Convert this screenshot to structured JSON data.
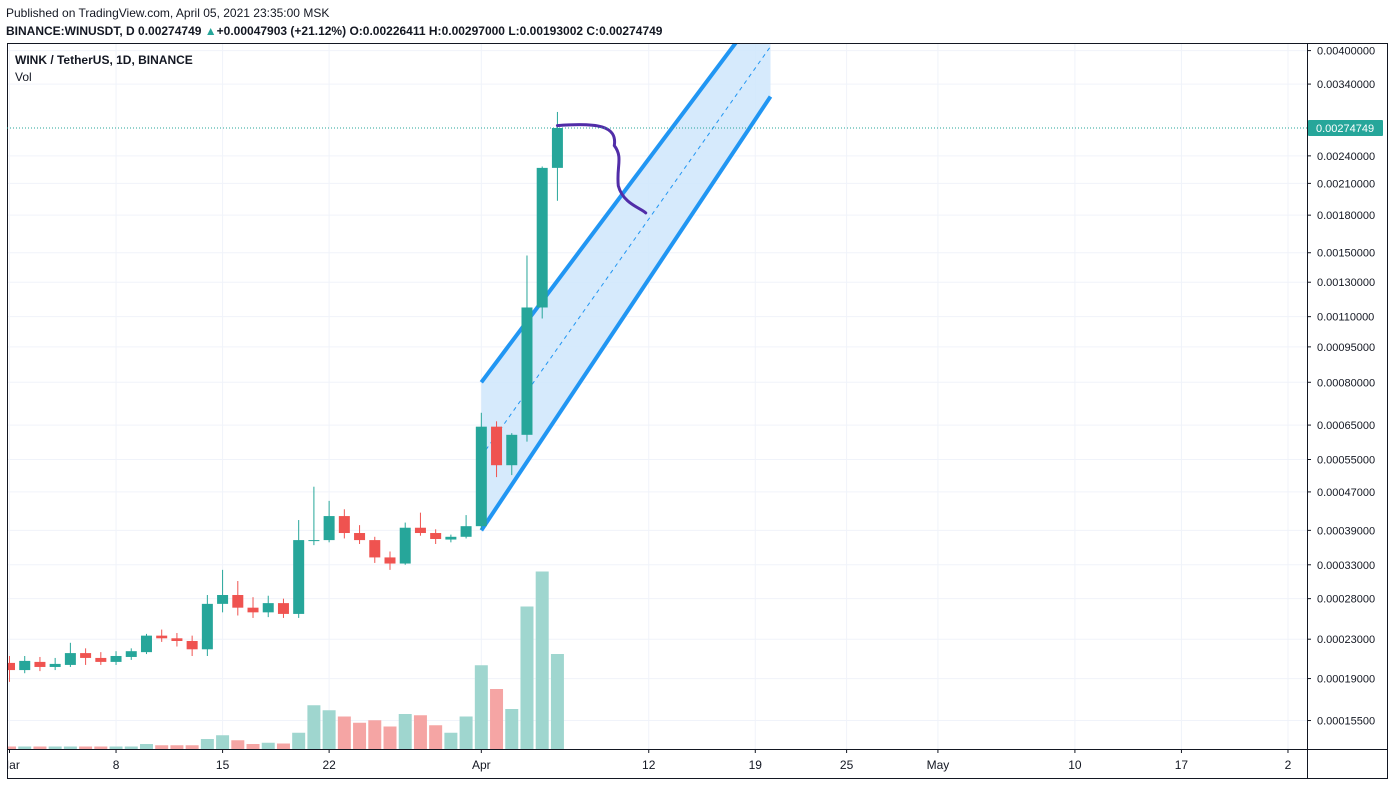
{
  "header": {
    "published": "Published on TradingView.com, April 05, 2021 23:35:00 MSK",
    "symbol": "BINANCE:WINUSDT, D",
    "last": "0.00274749",
    "change_arrow": "▲",
    "change": "+0.00047903 (+21.12%)",
    "o_label": "O:",
    "o_value": "0.00226411",
    "h_label": "H:",
    "h_value": "0.00297000",
    "l_label": "L:",
    "l_value": "0.00193002",
    "c_label": "C:",
    "c_value": "0.00274749"
  },
  "legend": {
    "title": "WINK / TetherUS, 1D, BINANCE",
    "volume": "Vol"
  },
  "colors": {
    "up": "#26a69a",
    "down": "#ef5350",
    "vol_up": "#9fd6cf",
    "vol_down": "#f5a5a4",
    "channel_line": "#2196f3",
    "channel_fill": "#cfe6fb",
    "drawing": "#512da8",
    "price_line": "#26a69a"
  },
  "chart_data": {
    "type": "candlestick",
    "scale": "log",
    "price_axis_ticks": [
      "0.00015500",
      "0.00019000",
      "0.00023000",
      "0.00028000",
      "0.00033000",
      "0.00039000",
      "0.00047000",
      "0.00055000",
      "0.00065000",
      "0.00080000",
      "0.00095000",
      "0.00110000",
      "0.00130000",
      "0.00150000",
      "0.00180000",
      "0.00210000",
      "0.00240000",
      "0.00274749",
      "0.00340000",
      "0.00400000"
    ],
    "last_price_label": "0.00274749",
    "time_axis_labels": [
      {
        "label": "Mar",
        "day": 0
      },
      {
        "label": "8",
        "day": 7
      },
      {
        "label": "15",
        "day": 14
      },
      {
        "label": "22",
        "day": 21
      },
      {
        "label": "Apr",
        "day": 31
      },
      {
        "label": "12",
        "day": 42
      },
      {
        "label": "19",
        "day": 49
      },
      {
        "label": "25",
        "day": 55
      },
      {
        "label": "May",
        "day": 61
      },
      {
        "label": "10",
        "day": 70
      },
      {
        "label": "17",
        "day": 77
      },
      {
        "label": "2",
        "day": 84
      }
    ],
    "candles": [
      {
        "d": "2021-02-28",
        "o": 0.000205,
        "h": 0.000212,
        "l": 0.000187,
        "c": 0.000198
      },
      {
        "d": "2021-03-01",
        "o": 0.000198,
        "h": 0.000212,
        "l": 0.000195,
        "c": 0.000207
      },
      {
        "d": "2021-03-02",
        "o": 0.000206,
        "h": 0.000211,
        "l": 0.000197,
        "c": 0.000201
      },
      {
        "d": "2021-03-03",
        "o": 0.000201,
        "h": 0.00021,
        "l": 0.000198,
        "c": 0.000204
      },
      {
        "d": "2021-03-04",
        "o": 0.000203,
        "h": 0.000226,
        "l": 0.000201,
        "c": 0.000215
      },
      {
        "d": "2021-03-05",
        "o": 0.000215,
        "h": 0.00022,
        "l": 0.000203,
        "c": 0.00021
      },
      {
        "d": "2021-03-06",
        "o": 0.00021,
        "h": 0.000216,
        "l": 0.000203,
        "c": 0.000206
      },
      {
        "d": "2021-03-07",
        "o": 0.000206,
        "h": 0.000217,
        "l": 0.000203,
        "c": 0.000212
      },
      {
        "d": "2021-03-08",
        "o": 0.000211,
        "h": 0.00022,
        "l": 0.000208,
        "c": 0.000217
      },
      {
        "d": "2021-03-09",
        "o": 0.000216,
        "h": 0.000236,
        "l": 0.000214,
        "c": 0.000234
      },
      {
        "d": "2021-03-10",
        "o": 0.000234,
        "h": 0.000241,
        "l": 0.000227,
        "c": 0.000231
      },
      {
        "d": "2021-03-11",
        "o": 0.000231,
        "h": 0.000237,
        "l": 0.000222,
        "c": 0.000228
      },
      {
        "d": "2021-03-12",
        "o": 0.000228,
        "h": 0.000234,
        "l": 0.000212,
        "c": 0.000219
      },
      {
        "d": "2021-03-13",
        "o": 0.000219,
        "h": 0.000285,
        "l": 0.000212,
        "c": 0.000273
      },
      {
        "d": "2021-03-14",
        "o": 0.000273,
        "h": 0.000322,
        "l": 0.000262,
        "c": 0.000285
      },
      {
        "d": "2021-03-15",
        "o": 0.000285,
        "h": 0.000305,
        "l": 0.000258,
        "c": 0.000268
      },
      {
        "d": "2021-03-16",
        "o": 0.000268,
        "h": 0.000282,
        "l": 0.000255,
        "c": 0.000262
      },
      {
        "d": "2021-03-17",
        "o": 0.000262,
        "h": 0.000284,
        "l": 0.000256,
        "c": 0.000274
      },
      {
        "d": "2021-03-18",
        "o": 0.000274,
        "h": 0.00028,
        "l": 0.000255,
        "c": 0.00026
      },
      {
        "d": "2021-03-19",
        "o": 0.00026,
        "h": 0.00041,
        "l": 0.000255,
        "c": 0.000372
      },
      {
        "d": "2021-03-20",
        "o": 0.000372,
        "h": 0.000482,
        "l": 0.000363,
        "c": 0.000372
      },
      {
        "d": "2021-03-21",
        "o": 0.000372,
        "h": 0.00045,
        "l": 0.000368,
        "c": 0.000418
      },
      {
        "d": "2021-03-22",
        "o": 0.000418,
        "h": 0.000432,
        "l": 0.000375,
        "c": 0.000385
      },
      {
        "d": "2021-03-23",
        "o": 0.000385,
        "h": 0.0004,
        "l": 0.000365,
        "c": 0.000372
      },
      {
        "d": "2021-03-24",
        "o": 0.000372,
        "h": 0.000378,
        "l": 0.000333,
        "c": 0.000342
      },
      {
        "d": "2021-03-25",
        "o": 0.000342,
        "h": 0.000352,
        "l": 0.000322,
        "c": 0.000332
      },
      {
        "d": "2021-03-26",
        "o": 0.000332,
        "h": 0.000405,
        "l": 0.00033,
        "c": 0.000395
      },
      {
        "d": "2021-03-27",
        "o": 0.000395,
        "h": 0.000425,
        "l": 0.00038,
        "c": 0.000385
      },
      {
        "d": "2021-03-28",
        "o": 0.000385,
        "h": 0.000392,
        "l": 0.000365,
        "c": 0.000374
      },
      {
        "d": "2021-03-29",
        "o": 0.000373,
        "h": 0.000382,
        "l": 0.000368,
        "c": 0.000378
      },
      {
        "d": "2021-03-30",
        "o": 0.000378,
        "h": 0.00042,
        "l": 0.000375,
        "c": 0.000398
      },
      {
        "d": "2021-03-31",
        "o": 0.000398,
        "h": 0.00069,
        "l": 0.000392,
        "c": 0.000645
      },
      {
        "d": "2021-04-01",
        "o": 0.000645,
        "h": 0.000662,
        "l": 0.000505,
        "c": 0.000535
      },
      {
        "d": "2021-04-02",
        "o": 0.000535,
        "h": 0.000625,
        "l": 0.00051,
        "c": 0.00062
      },
      {
        "d": "2021-04-03",
        "o": 0.00062,
        "h": 0.00148,
        "l": 0.0006,
        "c": 0.00115
      },
      {
        "d": "2021-04-04",
        "o": 0.00115,
        "h": 0.00228,
        "l": 0.00109,
        "c": 0.002264
      },
      {
        "d": "2021-04-05",
        "o": 0.00226411,
        "h": 0.00297,
        "l": 0.00193002,
        "c": 0.00274749
      }
    ],
    "volume": [
      1,
      1,
      1,
      1,
      1,
      1,
      1,
      1,
      1,
      2,
      1.5,
      1.5,
      1.5,
      4,
      5.5,
      3.5,
      2,
      2.5,
      2.2,
      6.5,
      17.5,
      15.5,
      13,
      10.5,
      11.5,
      9,
      14,
      13.5,
      9.5,
      6.5,
      13,
      33.5,
      24,
      16,
      57,
      71,
      38
    ],
    "volume_max": 72,
    "channel": {
      "start_day": 31,
      "end_day": 50,
      "upper_start": 0.0008,
      "upper_end": 0.0052,
      "lower_start": 0.00039,
      "lower_end": 0.0032
    }
  }
}
